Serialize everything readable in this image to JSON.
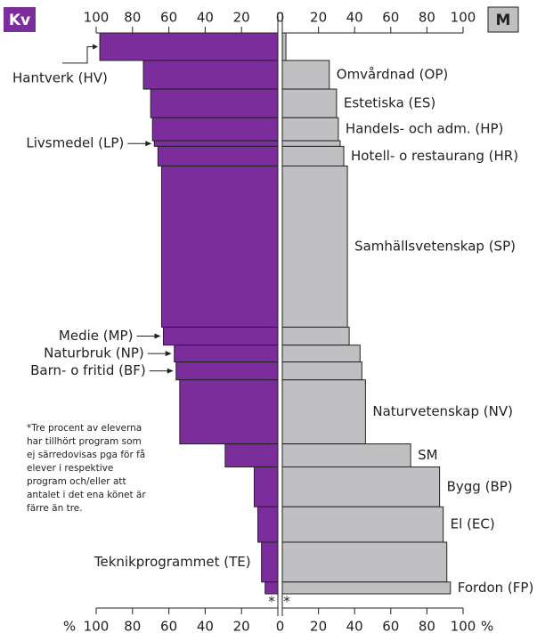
{
  "chart_data": {
    "type": "pyramid",
    "left_label": "Kv",
    "right_label": "M",
    "unit": "%",
    "asterisk": "*",
    "categories": [
      "Hantverk (HV)",
      "Omvårdnad (OP)",
      "Estetiska (ES)",
      "Handels- och adm. (HP)",
      "Livsmedel (LP)",
      "Hotell- o restaurang (HR)",
      "Samhällsvetenskap (SP)",
      "Medie (MP)",
      "Naturbruk (NP)",
      "Barn- o fritid (BF)",
      "Naturvetenskap (NV)",
      "SM",
      "Bygg (BP)",
      "El (EC)",
      "Teknikprogrammet (TE)",
      "Fordon (FP)"
    ],
    "label_side": [
      "left",
      "right",
      "right",
      "right",
      "left",
      "right",
      "right",
      "left",
      "left",
      "left",
      "right",
      "right",
      "right",
      "right",
      "left",
      "right"
    ],
    "shares": [
      4.9,
      5.1,
      5.1,
      4.1,
      1.0,
      3.5,
      28.7,
      3.2,
      3.0,
      3.2,
      11.4,
      4.1,
      7.1,
      6.3,
      7.1,
      2.1
    ],
    "series": [
      {
        "name": "Kv",
        "color": "#7b2d9b",
        "values": [
          98,
          74,
          70,
          69,
          68,
          66,
          64,
          63,
          57,
          56,
          54,
          29,
          13,
          11,
          9,
          7
        ]
      },
      {
        "name": "M",
        "color": "#c0c0c2",
        "values": [
          2,
          26,
          30,
          31,
          32,
          34,
          36,
          37,
          43,
          44,
          46,
          71,
          87,
          89,
          91,
          93
        ]
      }
    ],
    "xlim": [
      0,
      100
    ],
    "xticks": [
      0,
      20,
      40,
      60,
      80,
      100
    ],
    "footnote": [
      "*Tre procent av eleverna",
      "har tillhört program som",
      "ej särredovisas pga för få",
      "elever i respektive",
      "program och/eller att",
      "antalet i det ena könet är",
      "färre än tre."
    ]
  }
}
